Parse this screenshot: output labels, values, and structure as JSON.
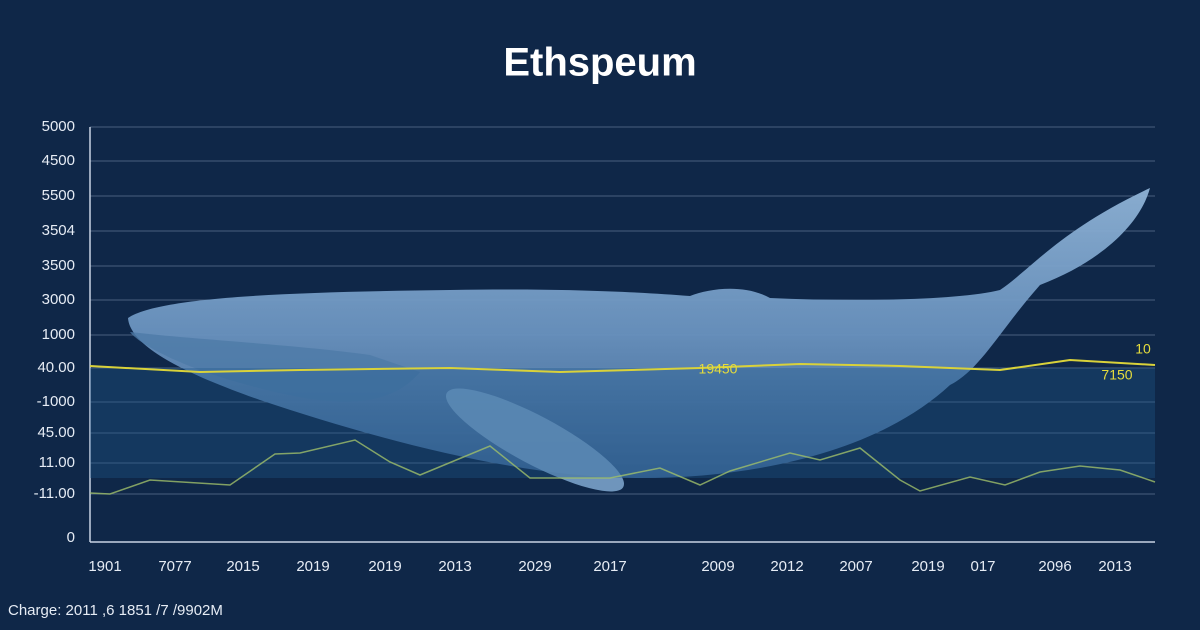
{
  "header": {
    "title": "Ethspeum"
  },
  "y_axis_labels": [
    "5000",
    "4500",
    "5500",
    "3504",
    "3500",
    "3000",
    "1000",
    "40.00",
    "-1000",
    "45.00",
    "11.00",
    "-11.00",
    "0"
  ],
  "x_axis_labels": [
    "1901",
    "7077",
    "2015",
    "2019",
    "2019",
    "2013",
    "2029",
    "2017",
    "2009",
    "2012",
    "2007",
    "2019",
    "017",
    "2096",
    "2013"
  ],
  "annotations": [
    "19450",
    "10",
    "7150"
  ],
  "footer": "Charge: 2011 ,6 1851 /7 /9902M"
}
